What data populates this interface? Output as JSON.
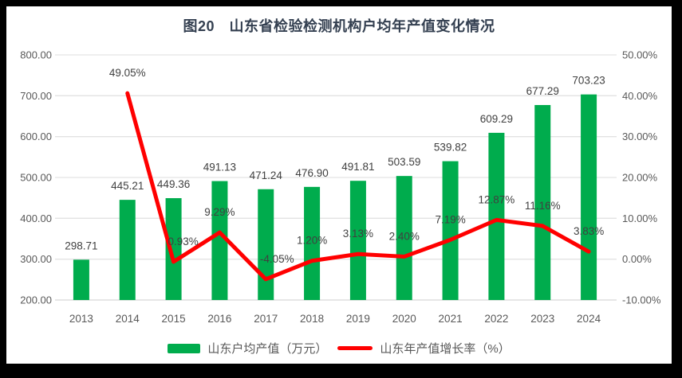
{
  "frame": {
    "border_color": "#000000",
    "canvas_background": "#ffffff"
  },
  "chart_data": {
    "type": "combo-bar-line",
    "title": "图20　山东省检验检测机构户均年产值变化情况",
    "categories": [
      "2013",
      "2014",
      "2015",
      "2016",
      "2017",
      "2018",
      "2019",
      "2020",
      "2021",
      "2022",
      "2023",
      "2024"
    ],
    "series": [
      {
        "name": "山东户均产值（万元）",
        "type": "bar",
        "axis": "left",
        "color": "#00AC4D",
        "values": [
          298.71,
          445.21,
          449.36,
          491.13,
          471.24,
          476.9,
          491.81,
          503.59,
          539.82,
          609.29,
          677.29,
          703.23
        ],
        "labels": [
          "298.71",
          "445.21",
          "449.36",
          "491.13",
          "471.24",
          "476.90",
          "491.81",
          "503.59",
          "539.82",
          "609.29",
          "677.29",
          "703.23"
        ]
      },
      {
        "name": "山东年产值增长率（%）",
        "type": "line",
        "axis": "right",
        "color": "#FF0000",
        "values": [
          null,
          49.05,
          0.93,
          9.29,
          -4.05,
          1.2,
          3.13,
          2.4,
          7.19,
          12.87,
          11.16,
          3.83
        ],
        "labels": [
          null,
          "49.05%",
          "0.93%",
          "9.29%",
          "-4.05%",
          "1.20%",
          "3.13%",
          "2.40%",
          "7.19%",
          "12.87%",
          "11.16%",
          "3.83%"
        ]
      }
    ],
    "left_axis": {
      "min": 200,
      "max": 800,
      "step": 100,
      "tick_labels": [
        "200.00",
        "300.00",
        "400.00",
        "500.00",
        "600.00",
        "700.00",
        "800.00"
      ]
    },
    "right_axis": {
      "min": -10,
      "max": 60,
      "step": 10,
      "tick_labels": [
        "-10.00%",
        "0.00%",
        "10.00%",
        "20.00%",
        "30.00%",
        "40.00%",
        "50.00%",
        "60.00%"
      ]
    },
    "grid": true,
    "legend_position": "bottom"
  },
  "styles": {
    "bar_color": "#00AC4D",
    "line_color": "#FF0000",
    "grid_color": "#E3E3E3",
    "axis_line_color": "#D6D6D6",
    "axis_text_color": "#595959",
    "data_label_color": "#404040",
    "title_color": "#333F50",
    "legend_text_color": "#595959"
  }
}
